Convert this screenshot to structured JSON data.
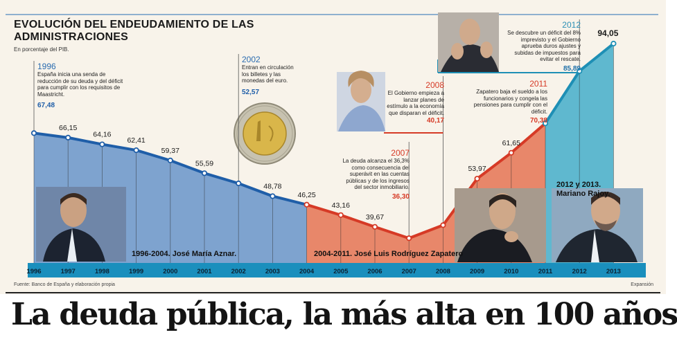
{
  "header": {
    "title": "EVOLUCIÓN DEL ENDEUDAMIENTO DE LAS ADMINISTRACIONES",
    "subtitle": "En porcentaje del PIB."
  },
  "annotations": {
    "y1996": {
      "year": "1996",
      "text": "España inicia una senda de reducción de su deuda y del déficit para cumplir con los requisitos de Maastricht.",
      "value": "67,48"
    },
    "y2002": {
      "year": "2002",
      "text": "Entran en circulación los billetes y las monedas del euro.",
      "value": "52,57"
    },
    "y2008": {
      "year": "2008",
      "text": "El Gobierno empieza a lanzar planes de estímulo a la economía que disparan el déficit.",
      "value": "40,17"
    },
    "y2007": {
      "year": "2007",
      "text": "La deuda alcanza el 36,3% como consecuencia del superávit en las cuentas públicas y de los ingresos del sector inmobiliario.",
      "value": "36,30"
    },
    "y2011": {
      "year": "2011",
      "text": "Zapatero baja el sueldo a los funcionarios y congela las pensiones para cumplir con el déficit.",
      "value": "70,38"
    },
    "y2012": {
      "year": "2012",
      "text": "Se descubre un déficit del 8% imprevisto y el Gobierno aprueba duros ajustes y subidas de impuestos para evitar el rescate.",
      "value": "85,89"
    }
  },
  "eras": {
    "aznar": "1996-2004. José María Aznar.",
    "zapatero": "2004-2011. José Luis Rodríguez Zapatero",
    "rajoy": "2012 y 2013. Mariano Rajoy."
  },
  "footer": {
    "source": "Fuente: Banco de España y elaboración propia",
    "brand": "Expansión"
  },
  "headline": "La deuda pública, la más alta en 100 años",
  "colors": {
    "aznar_fill": "#7ea3cf",
    "aznar_line": "#1f5ea8",
    "zapatero_fill": "#e8876a",
    "zapatero_line": "#d63a26",
    "rajoy_fill": "#5fb8cf",
    "rajoy_line": "#1e8fb5",
    "axis_band": "#1a8fbd",
    "background": "#f8f3ea"
  },
  "chart_data": {
    "type": "area",
    "x": [
      "1996",
      "1997",
      "1998",
      "1999",
      "2000",
      "2001",
      "2002",
      "2003",
      "2004",
      "2005",
      "2006",
      "2007",
      "2008",
      "2009",
      "2010",
      "2011",
      "2012",
      "2013"
    ],
    "series": [
      {
        "values": [
          67.48,
          66.15,
          64.16,
          62.41,
          59.37,
          55.59,
          52.57,
          48.78,
          46.25,
          43.16,
          39.67,
          36.3,
          40.17,
          53.97,
          61.65,
          70.38,
          85.89,
          94.05
        ]
      }
    ],
    "segments": [
      {
        "from": "1996",
        "to": "2004",
        "fill": "aznar"
      },
      {
        "from": "2004",
        "to": "2011",
        "fill": "zapatero"
      },
      {
        "from": "2011",
        "to": "2013",
        "fill": "rajoy"
      }
    ],
    "data_labels": [
      "",
      "66,15",
      "64,16",
      "62,41",
      "59,37",
      "55,59",
      "",
      "48,78",
      "46,25",
      "43,16",
      "39,67",
      "",
      "",
      "53,97",
      "61,65",
      "",
      "",
      "94,05"
    ],
    "title": "EVOLUCIÓN DEL ENDEUDAMIENTO DE LAS ADMINISTRACIONES",
    "ylabel": "En porcentaje del PIB.",
    "grid": false,
    "legend": "none"
  }
}
